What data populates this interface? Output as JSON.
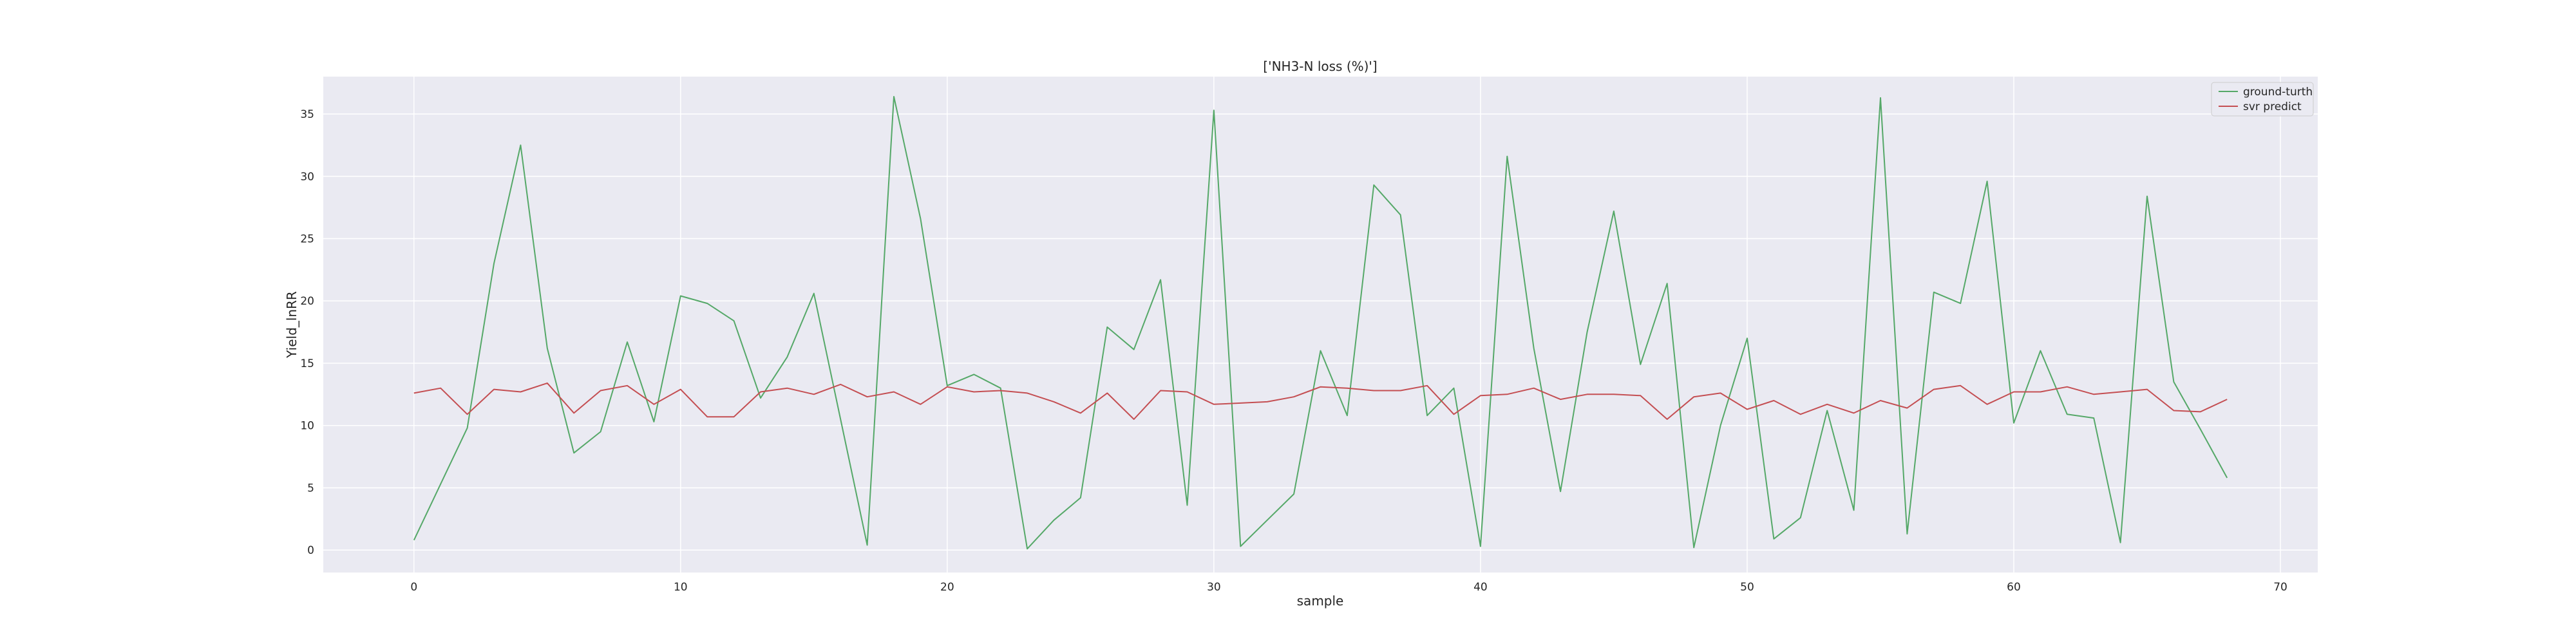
{
  "chart_data": {
    "type": "line",
    "title": "['NH3-N loss (%)']",
    "xlabel": "sample",
    "ylabel": "Yield_lnRR",
    "xlim": [
      -3.4,
      71.4
    ],
    "ylim": [
      -1.8,
      38.0
    ],
    "xticks": [
      0,
      10,
      20,
      30,
      40,
      50,
      60,
      70
    ],
    "yticks": [
      0,
      5,
      10,
      15,
      20,
      25,
      30,
      35
    ],
    "grid": true,
    "legend_position": "top-right",
    "x": [
      0,
      1,
      2,
      3,
      4,
      5,
      6,
      7,
      8,
      9,
      10,
      11,
      12,
      13,
      14,
      15,
      16,
      17,
      18,
      19,
      20,
      21,
      22,
      23,
      24,
      25,
      26,
      27,
      28,
      29,
      30,
      31,
      32,
      33,
      34,
      35,
      36,
      37,
      38,
      39,
      40,
      41,
      42,
      43,
      44,
      45,
      46,
      47,
      48,
      49,
      50,
      51,
      52,
      53,
      54,
      55,
      56,
      57,
      58,
      59,
      60,
      61,
      62,
      63,
      64,
      65,
      66,
      67,
      68
    ],
    "series": [
      {
        "name": "ground-turth",
        "color": "#55a868",
        "values": [
          0.8,
          5.3,
          9.8,
          23.0,
          32.5,
          16.2,
          7.8,
          9.5,
          16.7,
          10.3,
          20.4,
          19.8,
          18.4,
          12.2,
          15.5,
          20.6,
          10.5,
          0.4,
          36.4,
          26.6,
          13.2,
          14.1,
          13.0,
          0.1,
          2.4,
          4.2,
          17.9,
          16.1,
          21.7,
          3.6,
          35.3,
          0.3,
          2.4,
          4.5,
          16.0,
          10.8,
          29.3,
          26.9,
          10.8,
          13.0,
          0.3,
          31.6,
          16.2,
          4.7,
          17.5,
          27.2,
          14.9,
          21.4,
          0.2,
          10.0,
          17.0,
          0.9,
          2.6,
          11.2,
          3.2,
          36.3,
          1.3,
          20.7,
          19.8,
          29.6,
          10.2,
          16.0,
          10.9,
          10.6,
          0.6,
          28.4,
          13.5,
          9.7,
          5.8
        ]
      },
      {
        "name": "svr predict",
        "color": "#c44e52",
        "values": [
          12.6,
          13.0,
          10.9,
          12.9,
          12.7,
          13.4,
          11.0,
          12.8,
          13.2,
          11.7,
          12.9,
          10.7,
          10.7,
          12.7,
          13.0,
          12.5,
          13.3,
          12.3,
          12.7,
          11.7,
          13.1,
          12.7,
          12.8,
          12.6,
          11.9,
          11.0,
          12.6,
          10.5,
          12.8,
          12.7,
          11.7,
          11.8,
          11.9,
          12.3,
          13.1,
          13.0,
          12.8,
          12.8,
          13.2,
          10.9,
          12.4,
          12.5,
          13.0,
          12.1,
          12.5,
          12.5,
          12.4,
          10.5,
          12.3,
          12.6,
          11.3,
          12.0,
          10.9,
          11.7,
          11.0,
          12.0,
          11.4,
          12.9,
          13.2,
          11.7,
          12.7,
          12.7,
          13.1,
          12.5,
          12.7,
          12.9,
          11.2,
          11.1,
          12.1
        ]
      }
    ]
  }
}
